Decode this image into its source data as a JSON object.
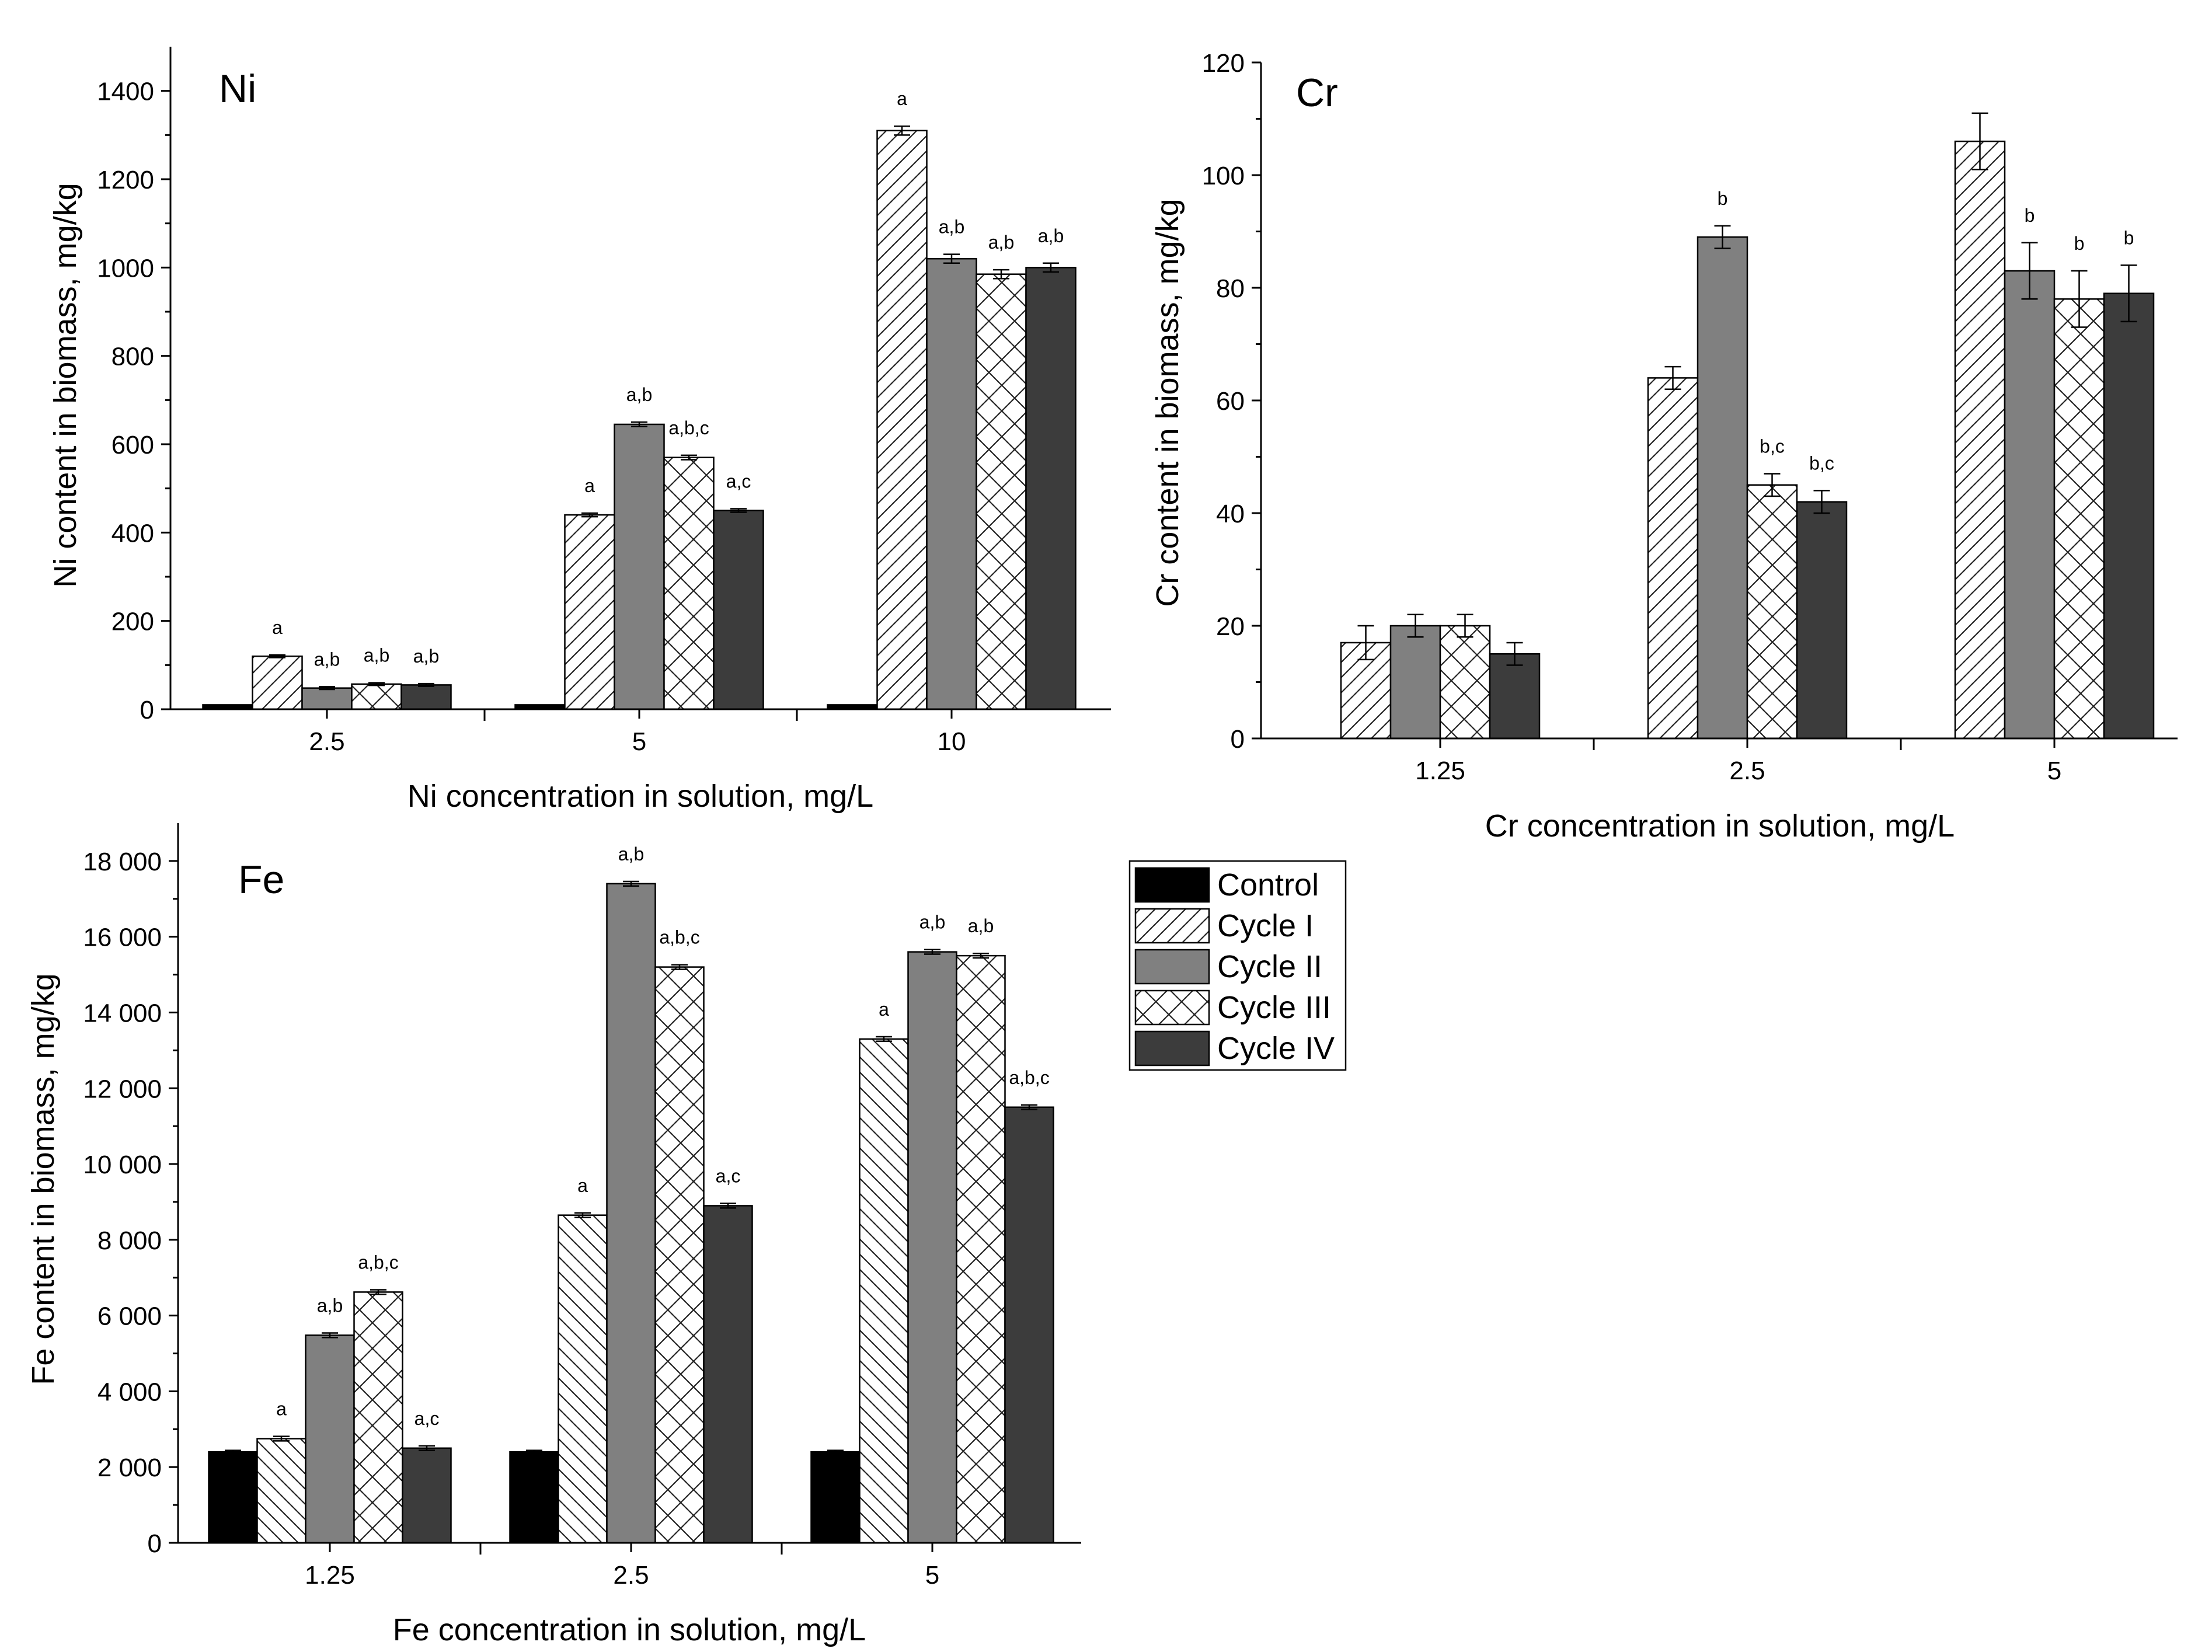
{
  "legend": {
    "items": [
      {
        "label": "Control",
        "pattern": "solid-black"
      },
      {
        "label": "Cycle I",
        "pattern": "hatch-forward"
      },
      {
        "label": "Cycle II",
        "pattern": "solid-gray"
      },
      {
        "label": "Cycle III",
        "pattern": "crosshatch"
      },
      {
        "label": "Cycle IV",
        "pattern": "solid-dark"
      }
    ]
  },
  "colors": {
    "control": "#000000",
    "cycle_ii": "#808080",
    "cycle_iv": "#3c3c3c",
    "hatch_stroke": "#222222",
    "axis": "#000000"
  },
  "chart_data": [
    {
      "id": "ni",
      "type": "bar",
      "panel_label": "Ni",
      "xlabel": "Ni concentration in solution, mg/L",
      "ylabel": "Ni content in biomass, mg/kg",
      "categories": [
        "2.5",
        "5",
        "10"
      ],
      "ylim": [
        0,
        1500
      ],
      "yticks": [
        0,
        200,
        400,
        600,
        800,
        1000,
        1200,
        1400
      ],
      "ytick_labels": [
        "0",
        "200",
        "400",
        "600",
        "800",
        "1000",
        "1200",
        "1400"
      ],
      "series": [
        {
          "name": "Control",
          "values": [
            10,
            10,
            10
          ],
          "errors": [
            0,
            0,
            0
          ],
          "letters": [
            "",
            "",
            ""
          ]
        },
        {
          "name": "Cycle I",
          "values": [
            120,
            440,
            1310
          ],
          "errors": [
            3,
            4,
            10
          ],
          "letters": [
            "a",
            "a",
            "a"
          ]
        },
        {
          "name": "Cycle II",
          "values": [
            48,
            645,
            1020
          ],
          "errors": [
            3,
            5,
            10
          ],
          "letters": [
            "a,b",
            "a,b",
            "a,b"
          ]
        },
        {
          "name": "Cycle III",
          "values": [
            57,
            570,
            985
          ],
          "errors": [
            3,
            5,
            10
          ],
          "letters": [
            "a,b",
            "a,b,c",
            "a,b"
          ]
        },
        {
          "name": "Cycle IV",
          "values": [
            55,
            450,
            1000
          ],
          "errors": [
            3,
            4,
            10
          ],
          "letters": [
            "a,b",
            "a,c",
            "a,b"
          ]
        }
      ]
    },
    {
      "id": "cr",
      "type": "bar",
      "panel_label": "Cr",
      "xlabel": "Cr concentration in solution, mg/L",
      "ylabel": "Cr content in biomass, mg/kg",
      "categories": [
        "1.25",
        "2.5",
        "5"
      ],
      "ylim": [
        0,
        120
      ],
      "yticks": [
        0,
        20,
        40,
        60,
        80,
        100,
        120
      ],
      "ytick_labels": [
        "0",
        "20",
        "40",
        "60",
        "80",
        "100",
        "120"
      ],
      "series": [
        {
          "name": "Cycle I",
          "values": [
            17,
            64,
            106
          ],
          "errors": [
            3,
            2,
            5
          ],
          "letters": [
            "",
            "",
            ""
          ]
        },
        {
          "name": "Cycle II",
          "values": [
            20,
            89,
            83
          ],
          "errors": [
            2,
            2,
            5
          ],
          "letters": [
            "",
            "b",
            "b"
          ]
        },
        {
          "name": "Cycle III",
          "values": [
            20,
            45,
            78
          ],
          "errors": [
            2,
            2,
            5
          ],
          "letters": [
            "",
            "b,c",
            "b"
          ]
        },
        {
          "name": "Cycle IV",
          "values": [
            15,
            42,
            79
          ],
          "errors": [
            2,
            2,
            5
          ],
          "letters": [
            "",
            "b,c",
            "b"
          ]
        }
      ]
    },
    {
      "id": "fe",
      "type": "bar",
      "panel_label": "Fe",
      "xlabel": "Fe concentration in solution, mg/L",
      "ylabel": "Fe content in biomass, mg/kg",
      "categories": [
        "1.25",
        "2.5",
        "5"
      ],
      "ylim": [
        0,
        19000
      ],
      "yticks": [
        0,
        2000,
        4000,
        6000,
        8000,
        10000,
        12000,
        14000,
        16000,
        18000
      ],
      "ytick_labels": [
        "0",
        "2 000",
        "4 000",
        "6 000",
        "8 000",
        "10 000",
        "12 000",
        "14 000",
        "16 000",
        "18 000"
      ],
      "series": [
        {
          "name": "Control",
          "values": [
            2400,
            2400,
            2400
          ],
          "errors": [
            40,
            40,
            40
          ],
          "letters": [
            "",
            "",
            ""
          ]
        },
        {
          "name": "Cycle I",
          "values": [
            2750,
            8650,
            13300
          ],
          "errors": [
            60,
            60,
            60
          ],
          "letters": [
            "a",
            "a",
            "a"
          ]
        },
        {
          "name": "Cycle II",
          "values": [
            5480,
            17400,
            15600
          ],
          "errors": [
            60,
            60,
            60
          ],
          "letters": [
            "a,b",
            "a,b",
            "a,b"
          ]
        },
        {
          "name": "Cycle III",
          "values": [
            6620,
            15200,
            15500
          ],
          "errors": [
            60,
            60,
            60
          ],
          "letters": [
            "a,b,c",
            "a,b,c",
            "a,b"
          ]
        },
        {
          "name": "Cycle IV",
          "values": [
            2500,
            8900,
            11500
          ],
          "errors": [
            60,
            60,
            60
          ],
          "letters": [
            "a,c",
            "a,c",
            "a,b,c"
          ]
        }
      ]
    }
  ]
}
